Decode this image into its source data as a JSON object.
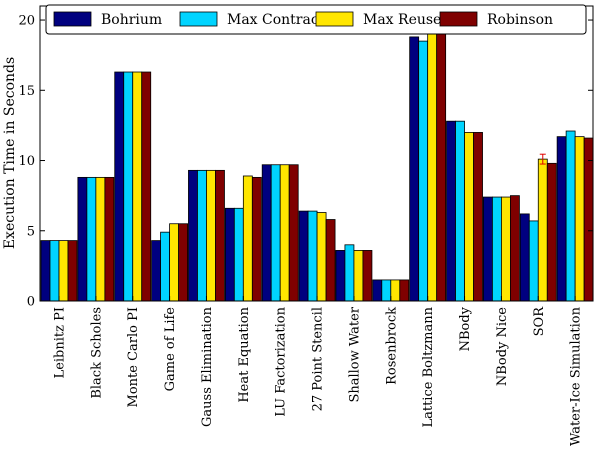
{
  "chart_data": {
    "type": "bar",
    "title": "",
    "xlabel": "",
    "ylabel": "Execution Time in Seconds",
    "ylim": [
      0,
      21
    ],
    "yticks": [
      "0",
      "5",
      "10",
      "15",
      "20"
    ],
    "grid": false,
    "legend_position": "top",
    "categories": [
      "Leibnitz PI",
      "Black Scholes",
      "Monte Carlo PI",
      "Game of Life",
      "Gauss Elimination",
      "Heat Equation",
      "LU Factorization",
      "27 Point Stencil",
      "Shallow Water",
      "Rosenbrock",
      "Lattice Boltzmann",
      "NBody",
      "NBody Nice",
      "SOR",
      "Water-Ice Simulation"
    ],
    "series": [
      {
        "name": "Bohrium",
        "color": "#00007f",
        "values": [
          4.3,
          8.8,
          16.3,
          4.3,
          9.3,
          6.6,
          9.7,
          6.4,
          3.6,
          1.5,
          18.8,
          12.8,
          7.4,
          6.2,
          11.7
        ]
      },
      {
        "name": "Max Contract",
        "color": "#00d4ff",
        "values": [
          4.3,
          8.8,
          16.3,
          4.9,
          9.3,
          6.6,
          9.7,
          6.4,
          4.0,
          1.5,
          18.5,
          12.8,
          7.4,
          5.7,
          12.1
        ]
      },
      {
        "name": "Max Reuse",
        "color": "#ffe600",
        "values": [
          4.3,
          8.8,
          16.3,
          5.5,
          9.3,
          8.9,
          9.7,
          6.3,
          3.6,
          1.5,
          20.0,
          12.0,
          7.4,
          10.1,
          11.7
        ]
      },
      {
        "name": "Robinson",
        "color": "#7f0000",
        "values": [
          4.3,
          8.8,
          16.3,
          5.5,
          9.3,
          8.8,
          9.7,
          5.8,
          3.6,
          1.5,
          19.6,
          12.0,
          7.5,
          9.8,
          11.6
        ]
      }
    ]
  }
}
